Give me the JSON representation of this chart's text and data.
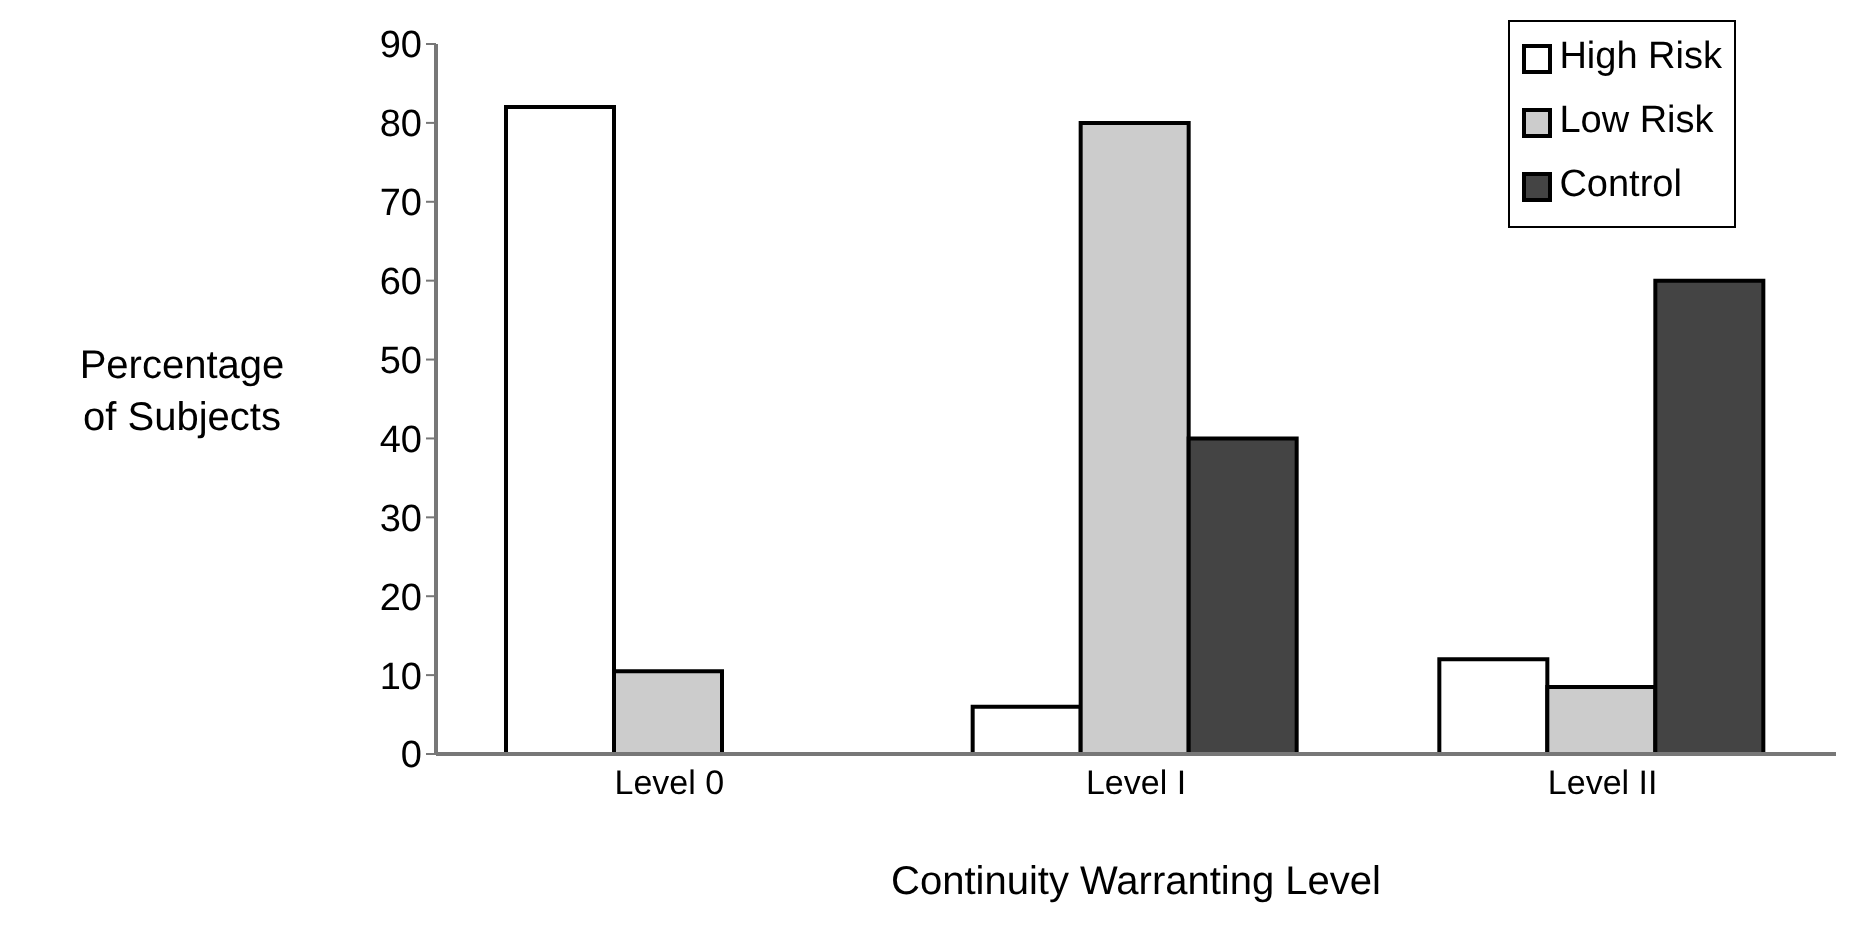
{
  "chart_data": {
    "type": "bar",
    "xlabel": "Continuity Warranting Level",
    "ylabel": "Percentage of Subjects",
    "categories": [
      "Level 0",
      "Level I",
      "Level II"
    ],
    "series": [
      {
        "name": "High Risk",
        "color": "#ffffff",
        "values": [
          82,
          6,
          12
        ]
      },
      {
        "name": "Low Risk",
        "color": "#cccccc",
        "values": [
          10.5,
          80,
          8.5
        ]
      },
      {
        "name": "Control",
        "color": "#444444",
        "values": [
          0,
          40,
          60
        ]
      }
    ],
    "ylim": [
      0,
      90
    ],
    "yticks": [
      0,
      10,
      20,
      30,
      40,
      50,
      60,
      70,
      80,
      90
    ],
    "grid": false,
    "legend": "top right"
  }
}
